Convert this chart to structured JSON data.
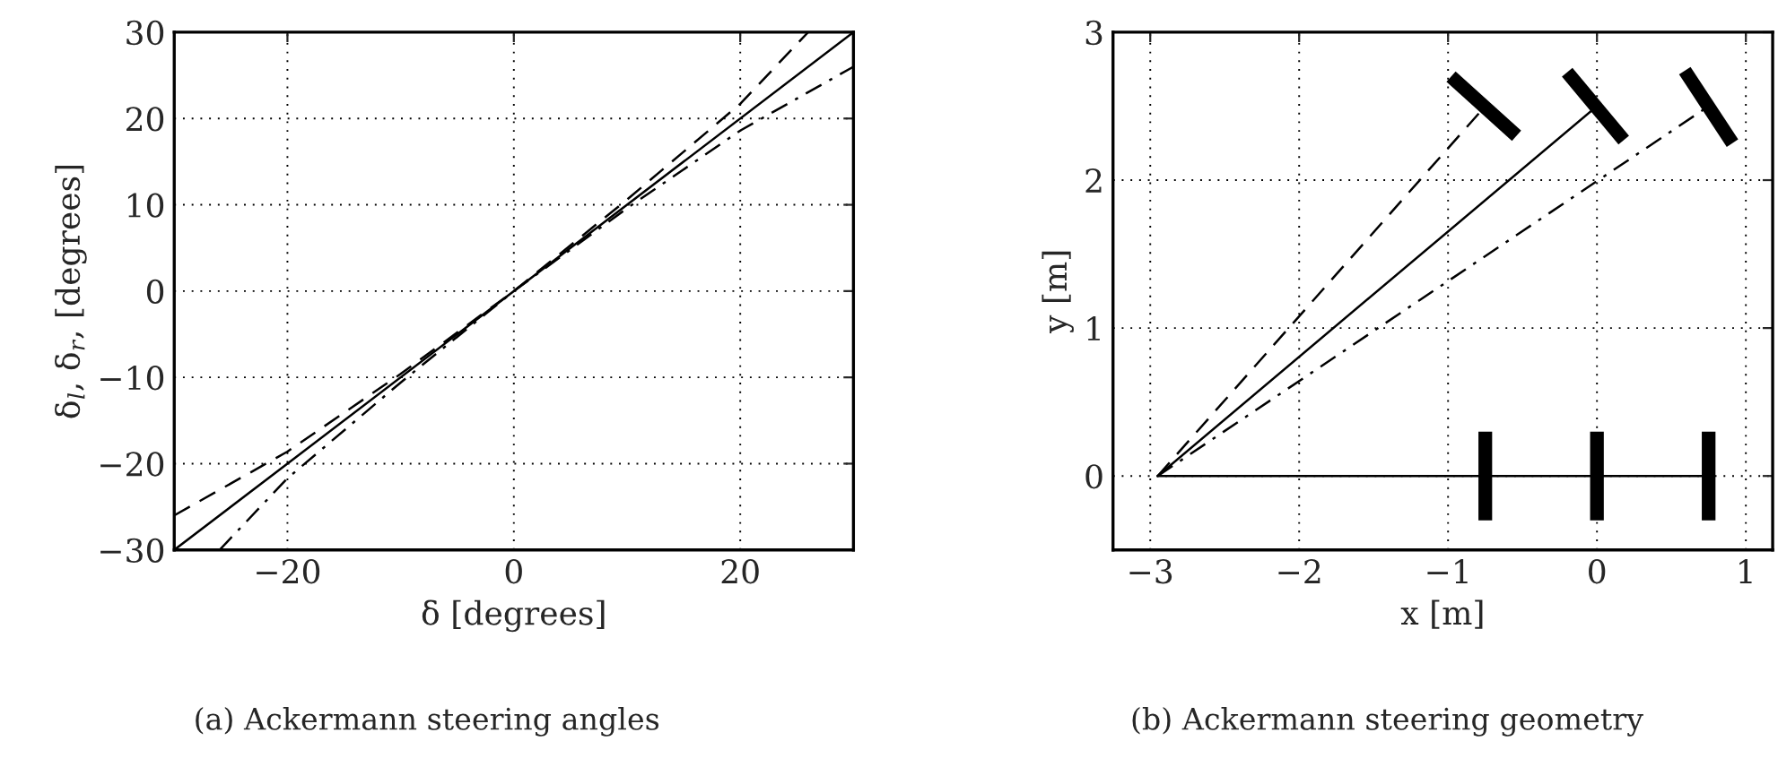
{
  "chart_data": [
    {
      "type": "line",
      "xlabel": "δ [degrees]",
      "ylabel": "δ$_{l}$, δ$_{r}$, [degrees]",
      "xlim": [
        -30,
        30
      ],
      "ylim": [
        -30,
        30
      ],
      "xticks": [
        -20,
        0,
        20
      ],
      "yticks": [
        -30,
        -20,
        -10,
        0,
        10,
        20,
        30
      ],
      "grid": true,
      "annotations": [
        "(a) Ackermann steering angles"
      ],
      "series": [
        {
          "type": "line",
          "color": "#000000",
          "line_style": "solid",
          "x": [
            -30,
            30
          ],
          "values": [
            -30,
            30
          ]
        },
        {
          "type": "line",
          "color": "#000000",
          "line_style": "dashed",
          "x": [
            -30,
            -20,
            -10,
            0,
            10,
            20,
            26
          ],
          "values": [
            -26,
            -18.6,
            -9.6,
            0,
            10.6,
            21.7,
            30
          ]
        },
        {
          "type": "line",
          "color": "#000000",
          "line_style": "dashdot",
          "x": [
            -26,
            -20,
            -10,
            0,
            10,
            20,
            30
          ],
          "values": [
            -30,
            -21.7,
            -10.6,
            0,
            9.6,
            18.6,
            26
          ]
        }
      ]
    },
    {
      "type": "line",
      "xlabel": "x [m]",
      "ylabel": "y [m]",
      "xlim": [
        -3.25,
        1.18
      ],
      "ylim": [
        -0.5,
        3
      ],
      "xticks": [
        -3,
        -2,
        -1,
        0,
        1
      ],
      "yticks": [
        0,
        1,
        2,
        3
      ],
      "grid": true,
      "annotations": [
        "(b) Ackermann steering geometry"
      ],
      "series": [
        {
          "type": "line",
          "color": "#000000",
          "line_style": "solid",
          "x": [
            -2.95,
            0.75
          ],
          "values": [
            0,
            0
          ]
        },
        {
          "type": "line",
          "color": "#000000",
          "line_style": "solid",
          "x": [
            -2.95,
            0
          ],
          "values": [
            0,
            2.5
          ]
        },
        {
          "type": "line",
          "color": "#000000",
          "line_style": "dashed",
          "x": [
            -2.95,
            -0.75
          ],
          "values": [
            0,
            2.5
          ]
        },
        {
          "type": "line",
          "color": "#000000",
          "line_style": "dashdot",
          "x": [
            -2.95,
            0.75
          ],
          "values": [
            0,
            2.5
          ]
        },
        {
          "color": "#000000",
          "x": [
            -0.75,
            -0.75
          ],
          "values": [
            -0.3,
            0.3
          ]
        },
        {
          "color": "#000000",
          "x": [
            0,
            0
          ],
          "values": [
            -0.3,
            0.3
          ]
        },
        {
          "color": "#000000",
          "x": [
            0.75,
            0.75
          ],
          "values": [
            -0.3,
            0.3
          ]
        },
        {
          "color": "#000000",
          "x": [
            -0.98,
            -0.54
          ],
          "values": [
            2.7,
            2.3
          ]
        },
        {
          "color": "#000000",
          "x": [
            -0.2,
            0.18
          ],
          "values": [
            2.73,
            2.27
          ]
        },
        {
          "color": "#000000",
          "x": [
            0.59,
            0.91
          ],
          "values": [
            2.74,
            2.25
          ]
        }
      ]
    }
  ]
}
